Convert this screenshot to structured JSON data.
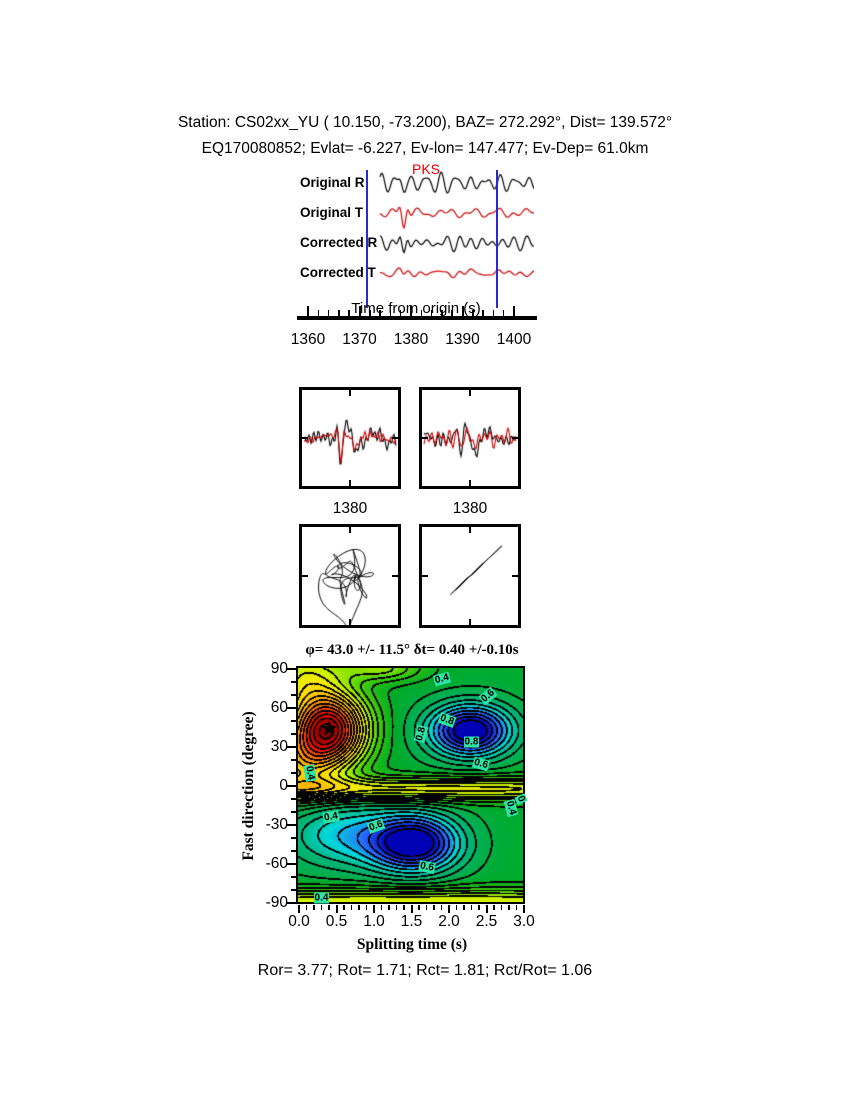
{
  "header": {
    "line1": "Station: CS02xx_YU (  10.150,  -73.200), BAZ=  272.292°, Dist=  139.572°",
    "line2": "EQ170080852; Evlat=  -6.227, Ev-lon= 147.477; Ev-Dep= 61.0km"
  },
  "footer": {
    "text": "Ror= 3.77; Rot= 1.71; Rct= 1.81; Rct/Rot= 1.06"
  },
  "chart_data": {
    "seismograms": {
      "type": "line",
      "xlabel": "Time from origin (s)",
      "xlim": [
        1360,
        1400
      ],
      "xticks": [
        1360,
        1370,
        1380,
        1390,
        1400
      ],
      "minor_tick_step_s": 2,
      "phase": "PKS",
      "phase_arrival_s": 1378.6,
      "window_s": [
        1371.3,
        1396.5
      ],
      "window_color": "#2a2ac8",
      "traces": [
        {
          "name": "Original R",
          "color": "#000000",
          "seed": 11,
          "amp": 7,
          "spike": 5
        },
        {
          "name": "Original T",
          "color": "#d00000",
          "seed": 22,
          "amp": 4,
          "spike": 15
        },
        {
          "name": "Corrected R",
          "color": "#000000",
          "seed": 33,
          "amp": 6,
          "spike": 14
        },
        {
          "name": "Corrected T",
          "color": "#d00000",
          "seed": 44,
          "amp": 3.5,
          "spike": 2
        }
      ]
    },
    "zoom_panels": {
      "time_label": "1380",
      "xticks": [
        1380
      ],
      "window_s": [
        1370,
        1390
      ],
      "left_traces": [
        {
          "color": "#000000",
          "seed": 55,
          "amp": 9,
          "spike": 26
        },
        {
          "color": "#d00000",
          "seed": 66,
          "amp": 8,
          "spike": 20
        }
      ],
      "right_traces": [
        {
          "color": "#000000",
          "seed": 77,
          "amp": 9,
          "spike": 24
        },
        {
          "color": "#d00000",
          "seed": 88,
          "amp": 7,
          "spike": 14
        }
      ]
    },
    "particle_motion": {
      "left": {
        "shape": "tangled-loops-with-large-circle",
        "x_harmonics": [
          [
            14,
            5,
            0.3
          ],
          [
            8,
            11,
            1.2
          ],
          [
            5,
            17,
            2.1
          ]
        ],
        "y_harmonics": [
          [
            13,
            5,
            1.9
          ],
          [
            9,
            9,
            0.4
          ],
          [
            5,
            19,
            1.0
          ]
        ],
        "loop": {
          "radius": 30,
          "center": [
            -12,
            14
          ],
          "u0": 0.8,
          "width": 0.14,
          "turns": 4
        }
      },
      "right": {
        "shape": "diagonal-linear-tangle",
        "s_harmonics": [
          [
            13,
            4,
            0.5
          ],
          [
            8,
            9,
            1.7
          ],
          [
            5,
            15,
            0.9
          ]
        ],
        "n_harmonics": [
          [
            4,
            13,
            0.2
          ],
          [
            3,
            21,
            2.5
          ]
        ],
        "excursion": {
          "amp": 40,
          "u0": 0.5,
          "width": 0.045
        },
        "diag": [
          0.72,
          0.38
        ]
      }
    },
    "error_surface": {
      "type": "heatmap",
      "title": "φ= 43.0 +/- 11.5°  δt= 0.40 +/-0.10s",
      "xlabel": "Splitting time (s)",
      "ylabel": "Fast direction (degree)",
      "xlim": [
        0,
        3
      ],
      "ylim": [
        -90,
        90
      ],
      "xticks": [
        "0.0",
        "0.5",
        "1.0",
        "1.5",
        "2.0",
        "2.5",
        "3.0"
      ],
      "yticks": [
        90,
        60,
        30,
        0,
        -30,
        -60,
        -90
      ],
      "best_fit": {
        "phi_deg": 43.0,
        "phi_err_deg": 11.5,
        "dt_s": 0.4,
        "dt_err_s": 0.1,
        "marker_xy": [
          0.4,
          43
        ]
      },
      "contour_step": 0.04,
      "surface_model": {
        "base": 0.66,
        "gaussians": [
          {
            "a": -0.6,
            "x": 0.4,
            "sx": 0.5,
            "y": 43,
            "sy": 28
          },
          {
            "a": -0.2,
            "x": 0.0,
            "sx": 0.5,
            "y": 15,
            "sy": 25
          },
          {
            "a": -0.18,
            "x": 0.05,
            "sx": 0.5,
            "y": 85,
            "sy": 25
          },
          {
            "a": 0.4,
            "x": 2.3,
            "sx": 0.55,
            "y": 42,
            "sy": 20
          },
          {
            "a": 0.4,
            "x": 1.55,
            "sx": 0.6,
            "y": -45,
            "sy": 22
          },
          {
            "a": 0.16,
            "x": 0.55,
            "sx": 0.75,
            "y": -38,
            "sy": 26
          },
          {
            "a": -0.24,
            "x": 1.5,
            "sx": 5.0,
            "y": -3,
            "sy": 9
          },
          {
            "a": -0.22,
            "x": 1.5,
            "sx": 5.0,
            "y": -90,
            "sy": 10
          },
          {
            "a": -0.15,
            "x": 1.1,
            "sx": 0.55,
            "y": 90,
            "sy": 10
          }
        ]
      },
      "colormap_stops": [
        [
          0.0,
          "#700000"
        ],
        [
          0.07,
          "#b40000"
        ],
        [
          0.14,
          "#e81800"
        ],
        [
          0.22,
          "#ff7000"
        ],
        [
          0.3,
          "#ffb400"
        ],
        [
          0.4,
          "#ffe800"
        ],
        [
          0.47,
          "#c8f400"
        ],
        [
          0.55,
          "#50d400"
        ],
        [
          0.65,
          "#00aa28"
        ],
        [
          0.75,
          "#00b478"
        ],
        [
          0.82,
          "#00d8d8"
        ],
        [
          0.9,
          "#2864ff"
        ],
        [
          1.0,
          "#0000b4"
        ]
      ],
      "annotations": [
        {
          "text": "0.4",
          "x": 1.9,
          "y": 82,
          "angle": -15
        },
        {
          "text": "0.6",
          "x": 2.52,
          "y": 69,
          "angle": -40
        },
        {
          "text": "0.8",
          "x": 1.97,
          "y": 51,
          "angle": 20
        },
        {
          "text": "0.8",
          "x": 1.62,
          "y": 40,
          "angle": -75
        },
        {
          "text": "0.8",
          "x": 2.3,
          "y": 34,
          "angle": 0
        },
        {
          "text": "0.6",
          "x": 2.42,
          "y": 17,
          "angle": 15
        },
        {
          "text": "0.4",
          "x": 0.14,
          "y": 10,
          "angle": 80
        },
        {
          "text": "0",
          "x": 2.96,
          "y": -10,
          "angle": 65
        },
        {
          "text": "0.4",
          "x": 2.82,
          "y": -17,
          "angle": 75
        },
        {
          "text": "0.4",
          "x": 0.42,
          "y": -24,
          "angle": -10
        },
        {
          "text": "0.6",
          "x": 1.03,
          "y": -31,
          "angle": -20
        },
        {
          "text": "0.6",
          "x": 1.7,
          "y": -62,
          "angle": 10
        },
        {
          "text": "0.4",
          "x": 0.3,
          "y": -86,
          "angle": 0
        }
      ],
      "star_glyph": "★"
    },
    "statistics": {
      "Ror": 3.77,
      "Rot": 1.71,
      "Rct": 1.81,
      "Rct_over_Rot": 1.06
    }
  }
}
